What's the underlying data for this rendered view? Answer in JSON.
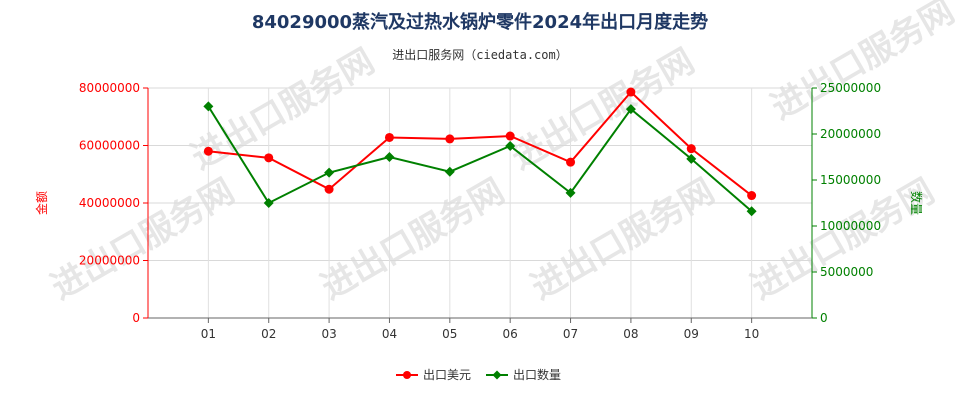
{
  "chart_data": {
    "type": "line",
    "title": "84029000蒸汽及过热水锅炉零件2024年出口月度走势",
    "subtitle": "进出口服务网（ciedata.com）",
    "categories": [
      "01",
      "02",
      "03",
      "04",
      "05",
      "06",
      "07",
      "08",
      "09",
      "10"
    ],
    "y_left_label": "金额",
    "y_right_label": "数量",
    "y_left_lim": [
      0,
      80000000
    ],
    "y_right_lim": [
      0,
      25000000
    ],
    "y_left_ticks": [
      "0",
      "20000000",
      "40000000",
      "60000000",
      "80000000"
    ],
    "y_right_ticks": [
      "0",
      "5000000",
      "10000000",
      "15000000",
      "20000000",
      "25000000"
    ],
    "grid": true,
    "legend_position": "bottom",
    "series": [
      {
        "name": "出口美元",
        "axis": "left",
        "color": "#ff0000",
        "values": [
          58000000,
          55700000,
          44800000,
          62800000,
          62300000,
          63300000,
          54200000,
          78600000,
          58900000,
          42600000
        ]
      },
      {
        "name": "出口数量",
        "axis": "right",
        "color": "#008000",
        "values": [
          23000000,
          12500000,
          15800000,
          17500000,
          15900000,
          18700000,
          13600000,
          22700000,
          17300000,
          11600000
        ]
      }
    ]
  },
  "watermark": "进出口服务网"
}
